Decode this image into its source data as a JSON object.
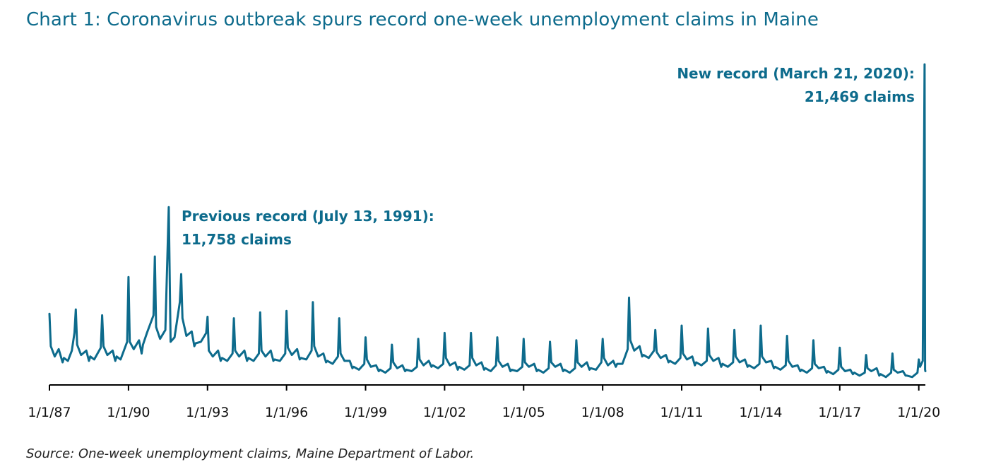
{
  "title": "Chart 1: Coronavirus outbreak spurs record one-week unemployment claims in Maine",
  "source": "Source: One-week unemployment claims, Maine Department of Labor.",
  "colors": {
    "series": "#0d6b8c",
    "title": "#0d6b8c",
    "axis": "#000000"
  },
  "chart_data": {
    "type": "line",
    "title": "Chart 1: Coronavirus outbreak spurs record one-week unemployment claims in Maine",
    "xlabel": "",
    "ylabel": "",
    "grid": false,
    "legend": "none",
    "xlim": [
      1987.0,
      2020.25
    ],
    "ylim": [
      0,
      22000
    ],
    "x_ticks": [
      1987,
      1990,
      1993,
      1996,
      1999,
      2002,
      2005,
      2008,
      2011,
      2014,
      2017,
      2020
    ],
    "x_tick_labels": [
      "1/1/87",
      "1/1/90",
      "1/1/93",
      "1/1/96",
      "1/1/99",
      "1/1/02",
      "1/1/05",
      "1/1/08",
      "1/1/11",
      "1/1/14",
      "1/1/17",
      "1/1/20"
    ],
    "series": [
      {
        "x": [
          1987.0,
          1987.05,
          1987.2,
          1987.35,
          1987.5,
          1987.55,
          1987.7,
          1987.85,
          1987.95,
          1988.0,
          1988.05,
          1988.2,
          1988.4,
          1988.5,
          1988.55,
          1988.7,
          1988.95,
          1989.0,
          1989.05,
          1989.2,
          1989.4,
          1989.5,
          1989.55,
          1989.7,
          1989.95,
          1990.0,
          1990.05,
          1990.2,
          1990.4,
          1990.5,
          1990.55,
          1990.7,
          1990.95,
          1991.0,
          1991.05,
          1991.2,
          1991.4,
          1991.53,
          1991.6,
          1991.75,
          1991.95,
          1992.0,
          1992.05,
          1992.2,
          1992.4,
          1992.5,
          1992.55,
          1992.75,
          1992.95,
          1993.0,
          1993.05,
          1993.2,
          1993.4,
          1993.5,
          1993.55,
          1993.75,
          1993.95,
          1994.0,
          1994.05,
          1994.2,
          1994.4,
          1994.5,
          1994.55,
          1994.75,
          1994.95,
          1995.0,
          1995.05,
          1995.2,
          1995.4,
          1995.5,
          1995.55,
          1995.75,
          1995.95,
          1996.0,
          1996.05,
          1996.2,
          1996.4,
          1996.5,
          1996.55,
          1996.75,
          1996.95,
          1997.0,
          1997.05,
          1997.2,
          1997.4,
          1997.5,
          1997.55,
          1997.75,
          1997.95,
          1998.0,
          1998.05,
          1998.2,
          1998.4,
          1998.5,
          1998.55,
          1998.75,
          1998.95,
          1999.0,
          1999.05,
          1999.2,
          1999.4,
          1999.5,
          1999.55,
          1999.75,
          1999.95,
          2000.0,
          2000.05,
          2000.2,
          2000.4,
          2000.5,
          2000.55,
          2000.75,
          2000.95,
          2001.0,
          2001.05,
          2001.2,
          2001.4,
          2001.5,
          2001.55,
          2001.75,
          2001.95,
          2002.0,
          2002.05,
          2002.2,
          2002.4,
          2002.5,
          2002.55,
          2002.75,
          2002.95,
          2003.0,
          2003.05,
          2003.2,
          2003.4,
          2003.5,
          2003.55,
          2003.75,
          2003.95,
          2004.0,
          2004.05,
          2004.2,
          2004.4,
          2004.5,
          2004.55,
          2004.75,
          2004.95,
          2005.0,
          2005.05,
          2005.2,
          2005.4,
          2005.5,
          2005.55,
          2005.75,
          2005.95,
          2006.0,
          2006.05,
          2006.2,
          2006.4,
          2006.5,
          2006.55,
          2006.75,
          2006.95,
          2007.0,
          2007.05,
          2007.2,
          2007.4,
          2007.5,
          2007.55,
          2007.75,
          2007.95,
          2008.0,
          2008.05,
          2008.2,
          2008.4,
          2008.5,
          2008.55,
          2008.75,
          2008.95,
          2009.0,
          2009.05,
          2009.2,
          2009.4,
          2009.5,
          2009.55,
          2009.75,
          2009.95,
          2010.0,
          2010.05,
          2010.2,
          2010.4,
          2010.5,
          2010.55,
          2010.75,
          2010.95,
          2011.0,
          2011.05,
          2011.2,
          2011.4,
          2011.5,
          2011.55,
          2011.75,
          2011.95,
          2012.0,
          2012.05,
          2012.2,
          2012.4,
          2012.5,
          2012.55,
          2012.75,
          2012.95,
          2013.0,
          2013.05,
          2013.2,
          2013.4,
          2013.5,
          2013.55,
          2013.75,
          2013.95,
          2014.0,
          2014.05,
          2014.2,
          2014.4,
          2014.5,
          2014.55,
          2014.75,
          2014.95,
          2015.0,
          2015.05,
          2015.2,
          2015.4,
          2015.5,
          2015.55,
          2015.75,
          2015.95,
          2016.0,
          2016.05,
          2016.2,
          2016.4,
          2016.5,
          2016.55,
          2016.75,
          2016.95,
          2017.0,
          2017.05,
          2017.2,
          2017.4,
          2017.5,
          2017.55,
          2017.75,
          2017.95,
          2018.0,
          2018.05,
          2018.2,
          2018.4,
          2018.5,
          2018.55,
          2018.75,
          2018.95,
          2019.0,
          2019.05,
          2019.2,
          2019.4,
          2019.5,
          2019.55,
          2019.75,
          2019.95,
          2020.0,
          2020.05,
          2020.15,
          2020.22,
          2020.24,
          2020.25
        ],
        "y": [
          4500,
          2300,
          1600,
          2100,
          1200,
          1500,
          1300,
          2000,
          3200,
          4800,
          2400,
          1700,
          2000,
          1300,
          1600,
          1400,
          2200,
          4400,
          2300,
          1700,
          2000,
          1300,
          1600,
          1400,
          2600,
          7000,
          2600,
          2100,
          2700,
          1800,
          2400,
          3200,
          4400,
          8400,
          3600,
          2800,
          3400,
          11758,
          2600,
          2900,
          5300,
          7200,
          4200,
          3000,
          3300,
          2300,
          2500,
          2600,
          3200,
          4300,
          2000,
          1600,
          2000,
          1300,
          1500,
          1300,
          1800,
          4200,
          2000,
          1600,
          2000,
          1300,
          1500,
          1300,
          1800,
          4600,
          2000,
          1600,
          2000,
          1300,
          1400,
          1300,
          1800,
          4700,
          2200,
          1700,
          2100,
          1400,
          1500,
          1400,
          2000,
          5300,
          2300,
          1600,
          1800,
          1200,
          1300,
          1100,
          1600,
          4200,
          1800,
          1300,
          1300,
          800,
          900,
          700,
          1100,
          2900,
          1400,
          900,
          1000,
          600,
          700,
          500,
          800,
          2400,
          1200,
          800,
          1000,
          600,
          700,
          600,
          900,
          2800,
          1400,
          1000,
          1300,
          900,
          1000,
          800,
          1100,
          3200,
          1500,
          1000,
          1200,
          700,
          900,
          700,
          1000,
          3200,
          1500,
          1000,
          1200,
          700,
          800,
          600,
          1000,
          2900,
          1300,
          900,
          1100,
          600,
          700,
          600,
          900,
          2800,
          1200,
          900,
          1100,
          600,
          700,
          500,
          800,
          2600,
          1200,
          900,
          1100,
          600,
          700,
          500,
          800,
          2700,
          1200,
          900,
          1200,
          700,
          800,
          700,
          1200,
          2800,
          1500,
          1000,
          1300,
          900,
          1100,
          1100,
          2100,
          5600,
          2700,
          2000,
          2300,
          1600,
          1700,
          1500,
          2000,
          3400,
          1900,
          1500,
          1700,
          1200,
          1300,
          1100,
          1500,
          3700,
          1800,
          1400,
          1600,
          1000,
          1200,
          1000,
          1300,
          3500,
          1700,
          1300,
          1500,
          900,
          1100,
          900,
          1200,
          3400,
          1600,
          1200,
          1400,
          900,
          1000,
          800,
          1100,
          3700,
          1600,
          1200,
          1300,
          800,
          900,
          700,
          1000,
          3000,
          1300,
          900,
          1000,
          600,
          700,
          500,
          800,
          2700,
          1100,
          800,
          900,
          500,
          600,
          400,
          700,
          2200,
          900,
          600,
          700,
          400,
          500,
          300,
          500,
          1700,
          800,
          600,
          800,
          300,
          400,
          200,
          500,
          1800,
          700,
          500,
          600,
          300,
          300,
          200,
          500,
          1400,
          900,
          1300,
          21469,
          700,
          600
        ]
      }
    ],
    "annotations": [
      {
        "lines": [
          "Previous record (July 13, 1991):",
          "11,758 claims"
        ],
        "x": 1991.53,
        "y": 11758,
        "align": "left"
      },
      {
        "lines": [
          "New record (March 21, 2020):",
          "21,469 claims"
        ],
        "x": 2020.22,
        "y": 21469,
        "align": "right"
      }
    ]
  }
}
